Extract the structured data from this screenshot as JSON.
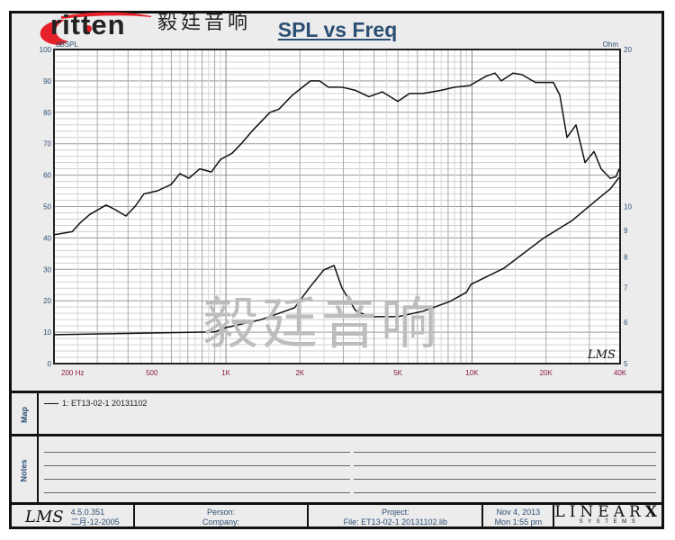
{
  "logo": {
    "brand": "ritten",
    "brand_prefix": "E",
    "chinese": "毅廷音响",
    "colors": {
      "swoosh": "#e62129",
      "text": "#222222"
    }
  },
  "watermark": "毅廷音响",
  "chart_data": {
    "type": "line",
    "title": "SPL vs Freq",
    "ylabel": "dBSPL",
    "y2label": "Ohm",
    "x_scale": "log",
    "xlim": [
      200,
      40000
    ],
    "ylim": [
      0,
      100
    ],
    "y2lim": [
      5,
      20
    ],
    "y2_scale": "log",
    "x_ticks": [
      "200  Hz",
      "500",
      "1K",
      "2K",
      "5K",
      "10K",
      "20K",
      "40K"
    ],
    "x_tick_values": [
      200,
      500,
      1000,
      2000,
      5000,
      10000,
      20000,
      40000
    ],
    "y_ticks": [
      0,
      10,
      20,
      30,
      40,
      50,
      60,
      70,
      80,
      90,
      100
    ],
    "y2_ticks": [
      5,
      6,
      7,
      8,
      9,
      10,
      20
    ],
    "grid": true,
    "series": [
      {
        "axis": "left",
        "unit": "dBSPL",
        "x": [
          200,
          237,
          257,
          280,
          326,
          355,
          392,
          427,
          464,
          527,
          598,
          650,
          707,
          783,
          873,
          950,
          1060,
          1153,
          1276,
          1388,
          1510,
          1642,
          1864,
          2206,
          2400,
          2610,
          2962,
          3362,
          3812,
          4326,
          4994,
          5572,
          6325,
          7484,
          8494,
          9800,
          11400,
          12400,
          13160,
          14680,
          15960,
          18110,
          21430,
          22740,
          24330,
          26480,
          28790,
          31340,
          33500,
          36460,
          38500,
          39660
        ],
        "y": [
          41,
          42,
          45,
          47.5,
          50.5,
          49,
          47,
          50,
          54,
          55,
          57,
          60.5,
          59,
          62,
          61,
          65,
          67,
          70,
          74,
          77,
          80,
          81,
          85.5,
          90,
          90,
          88,
          88,
          87,
          85,
          86.5,
          83.5,
          86,
          86,
          87,
          88,
          88.5,
          91.5,
          92.5,
          90,
          92.5,
          92,
          89.5,
          89.5,
          85.5,
          72,
          76,
          64,
          67.5,
          62,
          59,
          59.5,
          62
        ]
      },
      {
        "axis": "right",
        "unit": "Ohm",
        "x": [
          200,
          900,
          1000,
          1388,
          1900,
          2206,
          2500,
          2750,
          2962,
          3362,
          3812,
          4994,
          6325,
          8150,
          9500,
          9900,
          13500,
          19500,
          25500,
          33000,
          36500,
          39660
        ],
        "y": [
          5.68,
          5.75,
          5.86,
          6.07,
          6.4,
          7.03,
          7.56,
          7.71,
          6.98,
          6.32,
          6.15,
          6.15,
          6.3,
          6.58,
          6.85,
          7.09,
          7.62,
          8.69,
          9.4,
          10.4,
          10.81,
          11.38
        ]
      }
    ],
    "annotation": "LMS"
  },
  "map": {
    "label": "Map",
    "legend": "1: ET13-02-1   20131102"
  },
  "notes": {
    "label": "Notes"
  },
  "footer": {
    "version": "4.5.0.351",
    "build_date": "二月-12-2005",
    "person": "Person:",
    "company": "Company:",
    "project": "Project:",
    "file": "File: ET13-02-1 20131102.lib",
    "date": "Nov  4, 2013",
    "time": "Mon  1:55 pm",
    "lms": "LMS",
    "brand": "LINEAR",
    "brand_x": "X",
    "brand_sub": "S Y S T E M S"
  },
  "colors": {
    "axis_label": "#2d4f74",
    "x_tick": "#8b1a4a",
    "curve": "#111111"
  }
}
